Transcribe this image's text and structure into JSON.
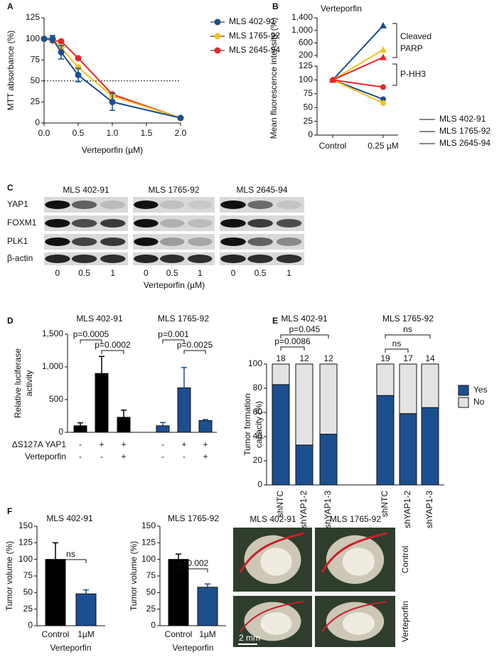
{
  "panel_labels": [
    "A",
    "B",
    "C",
    "D",
    "E",
    "F"
  ],
  "chart_data": [
    {
      "type": "line",
      "xlabel": "Verteporfin (µM)",
      "ylabel": "MTT absorbance (%)",
      "x": [
        0,
        0.125,
        0.25,
        0.5,
        1,
        2
      ],
      "xlim": [
        0,
        2
      ],
      "xticks": [
        {
          "value": 0,
          "label": "0.0"
        },
        0.5,
        {
          "value": 1,
          "label": "1.0"
        },
        1.5,
        {
          "value": 2,
          "label": "2.0"
        }
      ],
      "ylim": [
        0,
        125
      ],
      "yticks": [
        0,
        25,
        50,
        75,
        100,
        125
      ],
      "reference_line": 50,
      "series": [
        {
          "name": "MLS 402-91",
          "color": "#1c4f8f",
          "values": [
            100,
            100,
            84,
            57,
            25,
            6
          ],
          "errors": [
            null,
            4,
            8,
            8,
            10,
            null
          ]
        },
        {
          "name": "MLS 1765-92",
          "color": "#f4c21f",
          "values": [
            100,
            99,
            90,
            66,
            32,
            6
          ]
        },
        {
          "name": "MLS 2645-94",
          "color": "#e5262a",
          "values": [
            100,
            98,
            97,
            77,
            34,
            6
          ]
        }
      ]
    },
    {
      "type": "slope",
      "title": "Verteporfin",
      "ylabel": "Mean fluorescence intensity (%)",
      "categories": [
        "Control",
        "0.25 µM"
      ],
      "ylim": [
        0,
        125
      ],
      "yticks": [
        0,
        25,
        50,
        75,
        100,
        125
      ],
      "y2lim": [
        125,
        1400
      ],
      "y2ticks": [
        200,
        600,
        {
          "value": 1000,
          "label": "1,000"
        },
        {
          "value": 1400,
          "label": "1,400"
        }
      ],
      "annotations": [
        "Cleaved",
        "PARP",
        "P-HH3"
      ],
      "series": [
        {
          "name": "MLS 402-91",
          "color": "#1c4f8f",
          "values": [
            100,
            65
          ],
          "cleaved_parp": [
            100,
            1150
          ]
        },
        {
          "name": "MLS 1765-92",
          "color": "#f4c21f",
          "values": [
            100,
            58
          ],
          "cleaved_parp": [
            100,
            380
          ]
        },
        {
          "name": "MLS 2645-94",
          "color": "#e5262a",
          "values": [
            100,
            87
          ],
          "cleaved_parp": [
            100,
            140
          ]
        }
      ]
    },
    {
      "type": "bar",
      "ylabel": [
        "Relative luciferase",
        "activity"
      ],
      "ylim": [
        0,
        1500
      ],
      "yticks": [
        0,
        500,
        {
          "value": 1000,
          "label": "1,000"
        },
        {
          "value": 1500,
          "label": "1,500"
        }
      ],
      "series": [
        {
          "name": "MLS 402-91",
          "color": "#000000",
          "values": [
            100,
            900,
            230
          ],
          "errors": [
            45,
            260,
            110
          ]
        },
        {
          "name": "MLS 1765-92",
          "color": "#1c4f8f",
          "values": [
            100,
            680,
            180
          ],
          "errors": [
            50,
            310,
            15
          ]
        }
      ],
      "annotations": [
        "p=0.0005",
        "p=0.0002",
        "p=0.001",
        "p=0.0025"
      ],
      "conditions": [
        {
          "label": "ΔS127A YAP1",
          "signs": [
            "-",
            "+",
            "+",
            "-",
            "+",
            "+"
          ]
        },
        {
          "label": "Verteporfin",
          "signs": [
            "-",
            "-",
            "+",
            "-",
            "-",
            "+"
          ]
        }
      ]
    },
    {
      "type": "bar",
      "stacked": true,
      "ylabel": [
        "Tumor formation",
        "capacity (%)"
      ],
      "ylim": [
        0,
        100
      ],
      "yticks": [
        0,
        20,
        40,
        60,
        80,
        100
      ],
      "groups": [
        "MLS 402-91",
        "MLS 1765-92"
      ],
      "categories": [
        "shNTC",
        "shYAP1-2",
        "shYAP1-3",
        "shNTC",
        "shYAP1-2",
        "shYAP1-3"
      ],
      "series": [
        {
          "name": "Yes",
          "color": "#1c4f8f",
          "values": [
            83,
            33,
            42,
            74,
            59,
            64
          ]
        },
        {
          "name": "No",
          "color": "#e3e3e3",
          "values": [
            17,
            67,
            58,
            26,
            41,
            36
          ]
        }
      ],
      "n_labels": [
        18,
        12,
        12,
        19,
        17,
        14
      ],
      "annotations": [
        "p=0.045",
        "p=0.0086",
        "ns",
        "ns"
      ]
    },
    {
      "type": "bar",
      "title": "MLS 402-91",
      "ylabel": "Tumor volume (%)",
      "xlabel": "Verteporfin",
      "categories": [
        "Control",
        "1µM"
      ],
      "values": [
        100,
        48
      ],
      "errors": [
        25,
        6
      ],
      "colors": [
        "#000000",
        "#1c4f8f"
      ],
      "ylim": [
        0,
        150
      ],
      "yticks": [
        0,
        25,
        50,
        75,
        100,
        125,
        150
      ],
      "annotations": [
        "ns"
      ]
    },
    {
      "type": "bar",
      "title": "MLS 1765-92",
      "ylabel": "Tumor volume (%)",
      "xlabel": "Verteporfin",
      "categories": [
        "Control",
        "1µM"
      ],
      "values": [
        100,
        58
      ],
      "errors": [
        8,
        5
      ],
      "colors": [
        "#000000",
        "#1c4f8f"
      ],
      "ylim": [
        0,
        150
      ],
      "yticks": [
        0,
        25,
        50,
        75,
        100,
        125,
        150
      ],
      "annotations": [
        "p=0.002"
      ]
    }
  ],
  "blot": {
    "cell_lines": [
      "MLS 402-91",
      "MLS 1765-92",
      "MLS 2645-94"
    ],
    "proteins": [
      "YAP1",
      "FOXM1",
      "PLK1",
      "β-actin"
    ],
    "doses": [
      "0",
      "0.5",
      "1"
    ],
    "xlabel": "Verteporfin (µM)"
  },
  "photos": {
    "cell_lines": [
      "MLS 402-91",
      "MLS 1765-92"
    ],
    "conditions": [
      "Control",
      "Verteporfin"
    ],
    "scale_bar": "2 mm"
  }
}
